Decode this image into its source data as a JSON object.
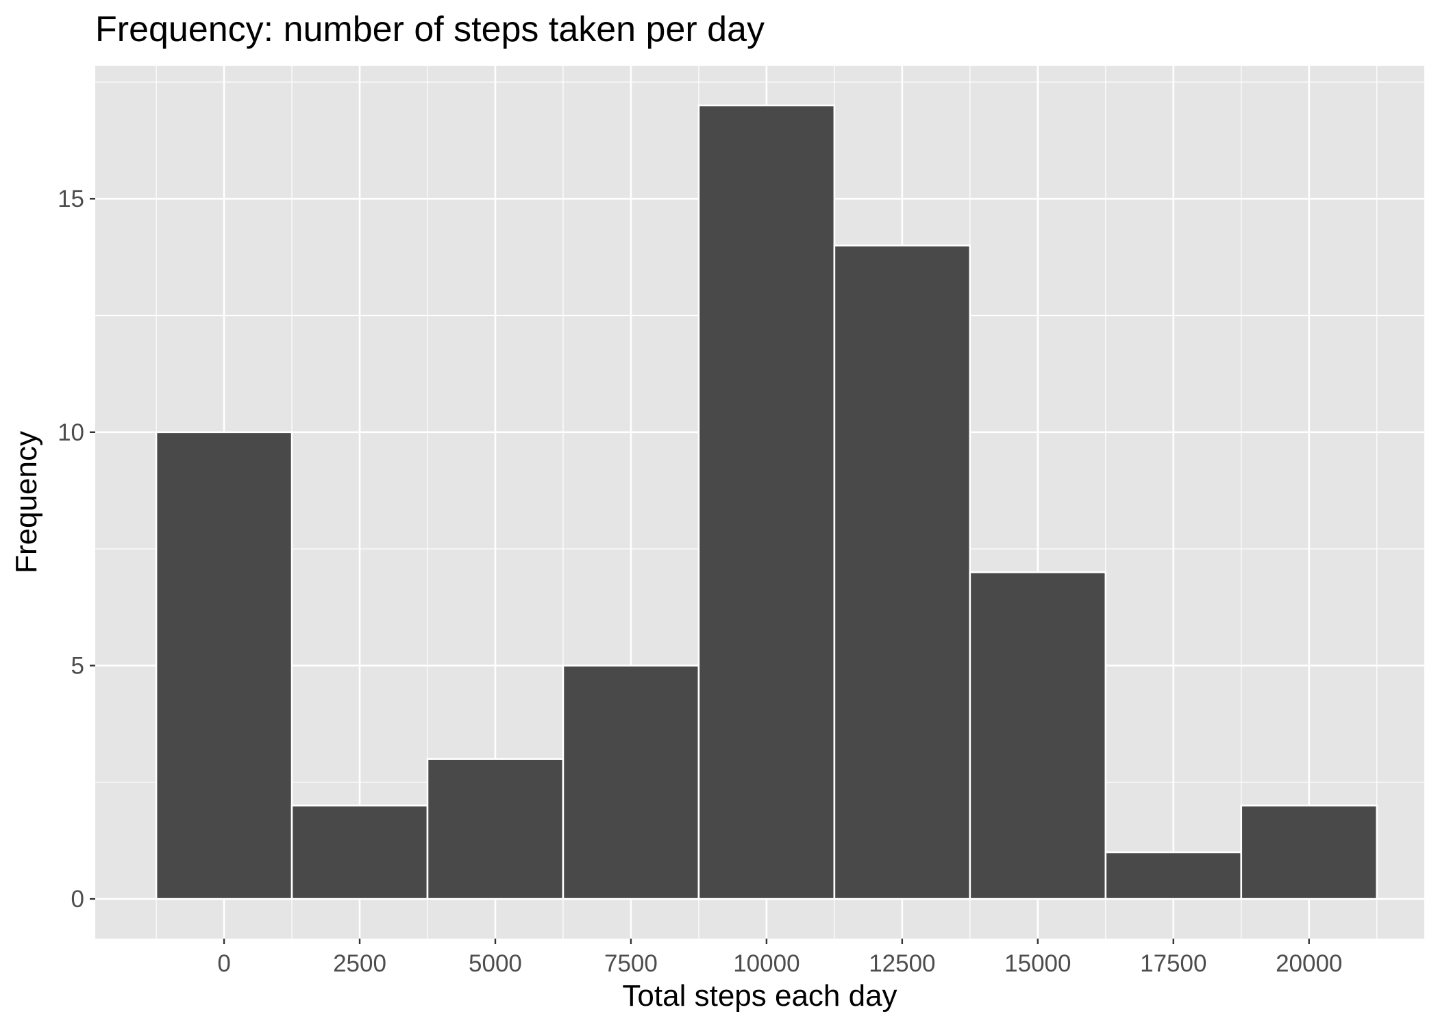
{
  "chart_data": {
    "type": "bar",
    "title": "Frequency: number of steps taken per day",
    "xlabel": "Total steps each day",
    "ylabel": "Frequency",
    "bin_width": 2500,
    "bins": [
      {
        "center": 0,
        "count": 10
      },
      {
        "center": 2500,
        "count": 2
      },
      {
        "center": 5000,
        "count": 3
      },
      {
        "center": 7500,
        "count": 5
      },
      {
        "center": 10000,
        "count": 17
      },
      {
        "center": 12500,
        "count": 14
      },
      {
        "center": 15000,
        "count": 7
      },
      {
        "center": 17500,
        "count": 1
      },
      {
        "center": 20000,
        "count": 2
      }
    ],
    "x_ticks": [
      "0",
      "2500",
      "5000",
      "7500",
      "10000",
      "12500",
      "15000",
      "17500",
      "20000"
    ],
    "y_ticks": [
      "0",
      "5",
      "10",
      "15"
    ],
    "xlim": [
      -2375,
      22125
    ],
    "ylim": [
      -0.85,
      17.85
    ],
    "grid": true,
    "colors": {
      "panel_background": "#E5E5E5",
      "grid": "#FFFFFF",
      "bar_fill": "#494949",
      "bar_border": "#FFFFFF"
    }
  }
}
